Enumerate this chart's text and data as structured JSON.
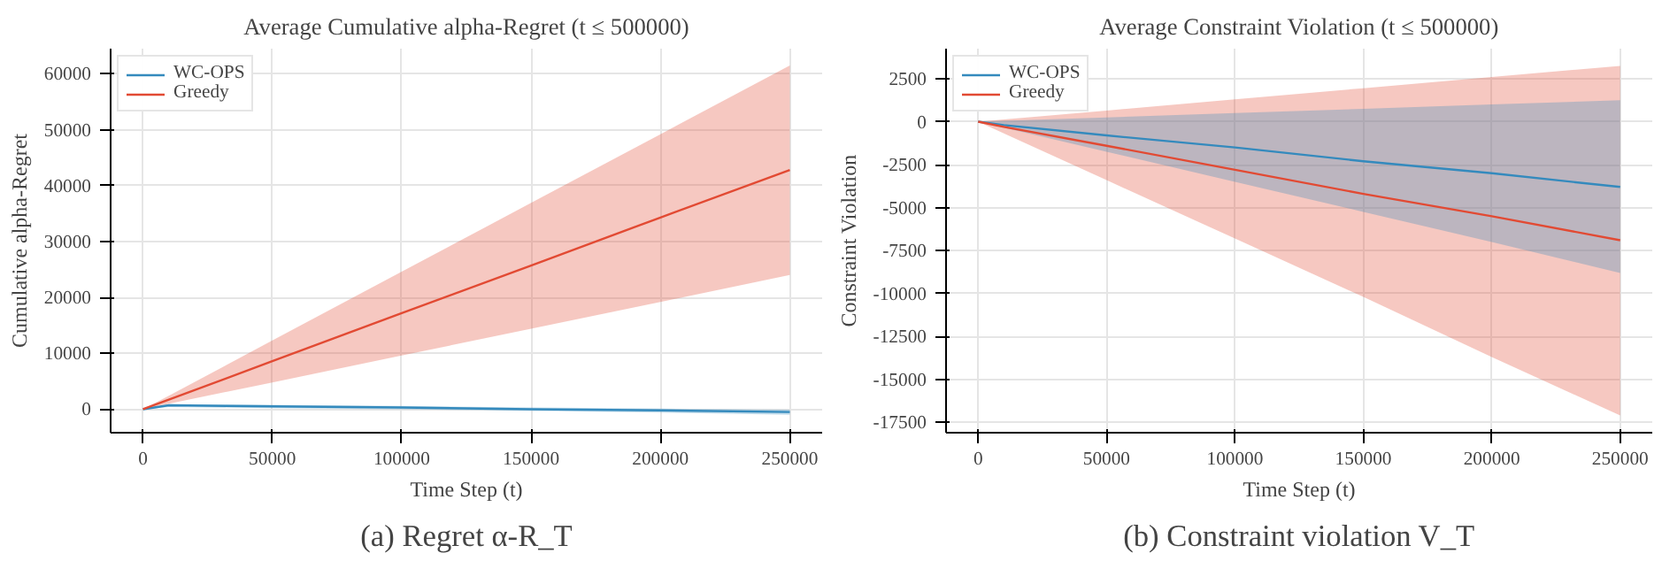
{
  "chart_data": [
    {
      "type": "line",
      "title": "Average Cumulative alpha-Regret (t ≤ 500000)",
      "xlabel": "Time Step (t)",
      "ylabel": "Cumulative alpha-Regret",
      "annotations": [
        "(a) Regret α-R_T"
      ],
      "x": [
        0,
        10000,
        50000,
        100000,
        150000,
        200000,
        250000
      ],
      "xlim": [
        -12500,
        262500
      ],
      "xticks": [
        0,
        50000,
        100000,
        150000,
        200000,
        250000
      ],
      "ylim": [
        -4200,
        64500
      ],
      "yticks": [
        0,
        10000,
        20000,
        30000,
        40000,
        50000,
        60000
      ],
      "grid": true,
      "legend": "top left",
      "series": [
        {
          "name": "WC-OPS",
          "color": "#348abd",
          "values": [
            0,
            700,
            500,
            300,
            0,
            -200,
            -500
          ],
          "lower": [
            0,
            400,
            200,
            0,
            -300,
            -600,
            -1000
          ],
          "upper": [
            0,
            900,
            800,
            600,
            300,
            100,
            -100
          ]
        },
        {
          "name": "Greedy",
          "color": "#e24a33",
          "values": [
            0,
            1700,
            8600,
            17200,
            25700,
            34300,
            42800
          ],
          "lower": [
            0,
            1000,
            4800,
            9600,
            14400,
            19200,
            24000
          ],
          "upper": [
            0,
            2400,
            12300,
            24600,
            36900,
            49200,
            61500
          ]
        }
      ]
    },
    {
      "type": "line",
      "title": "Average Constraint Violation (t ≤ 500000)",
      "xlabel": "Time Step (t)",
      "ylabel": "Constraint Violation",
      "annotations": [
        "(b) Constraint violation V_T"
      ],
      "x": [
        0,
        10000,
        50000,
        100000,
        150000,
        200000,
        250000
      ],
      "xlim": [
        -12500,
        262500
      ],
      "xticks": [
        0,
        50000,
        100000,
        150000,
        200000,
        250000
      ],
      "ylim": [
        -18100,
        4250
      ],
      "yticks": [
        2500,
        0,
        -2500,
        -5000,
        -7500,
        -10000,
        -12500,
        -15000,
        -17500
      ],
      "grid": true,
      "legend": "top left",
      "series": [
        {
          "name": "WC-OPS",
          "color": "#348abd",
          "values": [
            0,
            -200,
            -800,
            -1500,
            -2300,
            -3000,
            -3800
          ],
          "lower": [
            0,
            -350,
            -1750,
            -3500,
            -5250,
            -7000,
            -8800
          ],
          "upper": [
            0,
            50,
            250,
            500,
            750,
            1000,
            1250
          ]
        },
        {
          "name": "Greedy",
          "color": "#e24a33",
          "values": [
            0,
            -300,
            -1400,
            -2800,
            -4200,
            -5500,
            -6900
          ],
          "lower": [
            0,
            -680,
            -3400,
            -6800,
            -10200,
            -13700,
            -17100
          ],
          "upper": [
            0,
            130,
            650,
            1300,
            1950,
            2600,
            3250
          ]
        }
      ]
    }
  ]
}
